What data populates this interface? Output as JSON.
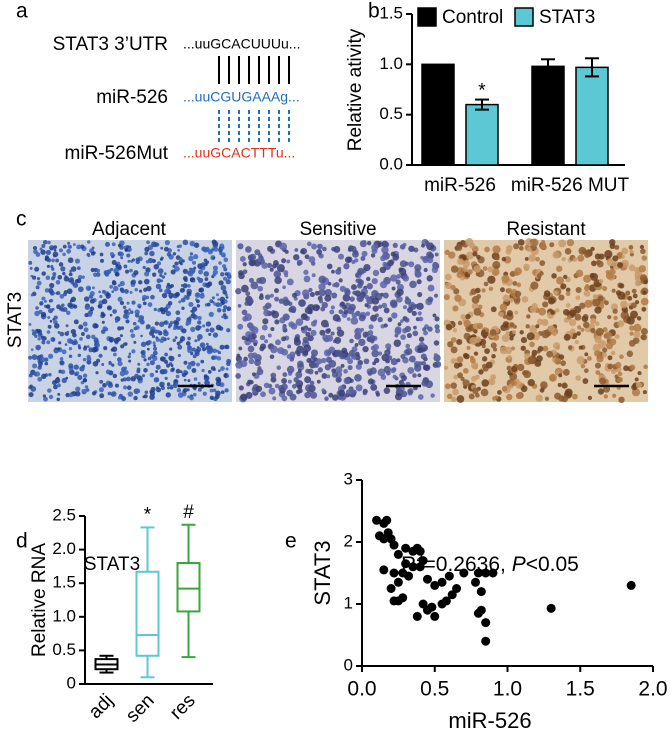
{
  "panel_a": {
    "letter": "a",
    "labels": [
      "STAT3 3’UTR",
      "miR-526",
      "miR-526Mut"
    ],
    "sequences": [
      {
        "text": "...uuGCACUUUu...",
        "color": "#000000"
      },
      {
        "text": "...uuCGUGAAAg...",
        "color": "#1f6fc0"
      },
      {
        "text": "...uuGCACTTTu...",
        "color": "#e0301e"
      }
    ]
  },
  "panel_c": {
    "letter": "c",
    "row_label": "STAT3",
    "columns": [
      "Adjacent",
      "Sensitive",
      "Resistant"
    ]
  },
  "chart_data": [
    {
      "type": "bar",
      "panel": "b",
      "ylabel": "Relative ativity",
      "categories": [
        "miR-526",
        "miR-526 MUT"
      ],
      "series": [
        {
          "name": "Control",
          "color": "#000000",
          "values": [
            1.0,
            0.98
          ],
          "errors": [
            0,
            0.07
          ]
        },
        {
          "name": "STAT3",
          "color": "#5bc8d4",
          "values": [
            0.6,
            0.97
          ],
          "errors": [
            0.05,
            0.09
          ]
        }
      ],
      "annotations": [
        {
          "text": "*",
          "category": "miR-526",
          "series": "STAT3"
        }
      ],
      "ylim": [
        0,
        1.5
      ],
      "yticks": [
        {
          "value": 0,
          "label": "0.0"
        },
        0.5,
        {
          "value": 1,
          "label": "1.0"
        },
        1.5
      ]
    },
    {
      "type": "box",
      "panel": "d",
      "title": "STAT3",
      "ylabel": "Relative RNA",
      "categories": [
        "adj",
        "sen",
        "res"
      ],
      "colors": [
        "#000000",
        "#5bc8d4",
        "#3aa63a"
      ],
      "boxes": [
        {
          "min": 0.17,
          "q1": 0.22,
          "median": 0.29,
          "q3": 0.37,
          "max": 0.42
        },
        {
          "min": 0.1,
          "q1": 0.42,
          "median": 0.73,
          "q3": 1.67,
          "max": 2.33
        },
        {
          "min": 0.4,
          "q1": 1.08,
          "median": 1.42,
          "q3": 1.8,
          "max": 2.37
        }
      ],
      "annotations": [
        {
          "text": "*",
          "category": "sen"
        },
        {
          "text": "#",
          "category": "res"
        }
      ],
      "ylim": [
        0,
        2.5
      ],
      "yticks": [
        0,
        0.5,
        {
          "value": 1,
          "label": "1.0"
        },
        1.5,
        {
          "value": 2,
          "label": "2.0"
        },
        2.5
      ]
    },
    {
      "type": "scatter",
      "panel": "e",
      "title_parts": [
        "R",
        "2",
        "=0.2636, ",
        "P",
        "<0.05"
      ],
      "xlabel": "miR-526",
      "ylabel": "STAT3",
      "color": "#000000",
      "x": [
        0.1,
        0.15,
        0.17,
        0.12,
        0.15,
        0.18,
        0.2,
        0.22,
        0.3,
        0.25,
        0.35,
        0.38,
        0.4,
        0.42,
        0.4,
        0.3,
        0.35,
        0.15,
        0.22,
        0.28,
        0.32,
        0.25,
        0.2,
        0.28,
        0.25,
        0.22,
        0.45,
        0.5,
        0.55,
        0.6,
        0.65,
        0.7,
        0.62,
        0.58,
        0.55,
        0.48,
        0.45,
        0.42,
        0.38,
        0.5,
        0.8,
        0.85,
        0.9,
        0.78,
        0.82,
        0.8,
        0.85,
        0.82,
        0.85,
        1.3,
        1.85
      ],
      "values": [
        2.35,
        2.3,
        2.35,
        2.1,
        2.05,
        2.15,
        2.05,
        1.95,
        1.9,
        1.8,
        1.85,
        1.9,
        1.85,
        1.7,
        1.6,
        1.65,
        1.6,
        1.55,
        1.5,
        1.5,
        1.45,
        1.35,
        1.25,
        1.1,
        1.05,
        1.05,
        1.4,
        1.3,
        1.35,
        1.45,
        1.25,
        1.5,
        1.15,
        1.05,
        1.0,
        0.95,
        0.9,
        1.0,
        0.8,
        0.8,
        1.5,
        1.5,
        1.5,
        1.35,
        1.2,
        0.85,
        0.7,
        0.9,
        0.4,
        0.93,
        1.3
      ],
      "xlim": [
        0,
        2
      ],
      "xticks": [
        {
          "value": 0,
          "label": "0.0"
        },
        0.5,
        {
          "value": 1,
          "label": "1.0"
        },
        1.5,
        {
          "value": 2,
          "label": "2.0"
        }
      ],
      "ylim": [
        0,
        3
      ],
      "yticks": [
        0,
        1,
        2,
        3
      ]
    }
  ]
}
